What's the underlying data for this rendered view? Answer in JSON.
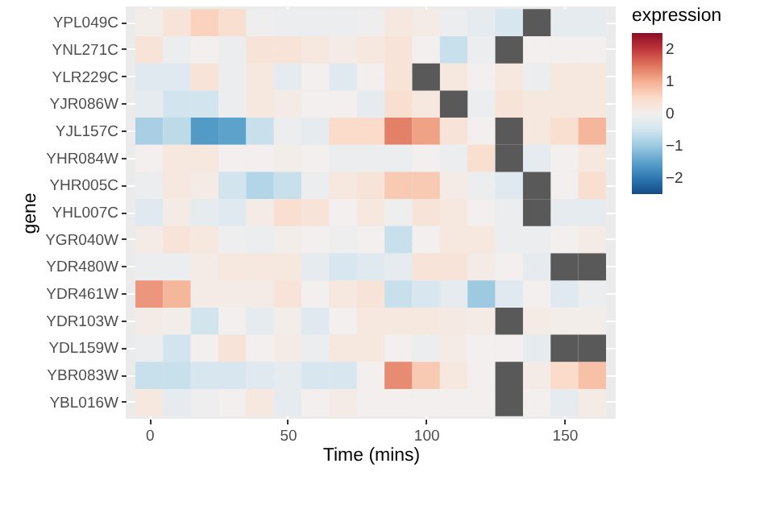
{
  "chart_data": {
    "type": "heatmap",
    "xlabel": "Time (mins)",
    "ylabel": "gene",
    "clabel": "expression",
    "x": [
      0,
      10,
      20,
      30,
      40,
      50,
      60,
      70,
      80,
      90,
      100,
      110,
      120,
      130,
      140,
      150,
      160
    ],
    "xlim": [
      -8.5,
      168.5
    ],
    "xticks": [
      0,
      50,
      100,
      150
    ],
    "y_categories": [
      "YPL049C",
      "YNL271C",
      "YLR229C",
      "YJR086W",
      "YJL157C",
      "YHR084W",
      "YHR005C",
      "YHL007C",
      "YGR040W",
      "YDR480W",
      "YDR461W",
      "YDR103W",
      "YDL159W",
      "YBR083W",
      "YBL016W"
    ],
    "cells": [
      [
        0.05,
        0.3,
        0.6,
        0.4,
        -0.05,
        -0.1,
        -0.1,
        -0.1,
        -0.05,
        0.2,
        0.1,
        -0.1,
        -0.2,
        -0.4,
        null,
        -0.2,
        -0.2
      ],
      [
        0.3,
        -0.1,
        0,
        -0.1,
        0.3,
        0.3,
        0.2,
        0.1,
        0.2,
        0.3,
        0,
        -0.6,
        -0.1,
        null,
        0,
        0,
        0
      ],
      [
        -0.3,
        -0.3,
        0.3,
        -0.1,
        0.2,
        -0.2,
        0,
        -0.3,
        0,
        0.3,
        null,
        0.2,
        0,
        0.2,
        -0.1,
        0.2,
        0.2
      ],
      [
        -0.2,
        -0.5,
        -0.5,
        -0.1,
        0.2,
        0.1,
        0,
        0,
        -0.2,
        0.4,
        0.2,
        null,
        -0.1,
        0.3,
        0.2,
        0.2,
        0.2
      ],
      [
        -0.9,
        -0.7,
        -1.6,
        -1.5,
        -0.6,
        -0.1,
        -0.2,
        0.5,
        0.5,
        1.4,
        1.1,
        0.3,
        0,
        null,
        0.2,
        0.4,
        0.9
      ],
      [
        0,
        0.2,
        0.2,
        0,
        0,
        0.05,
        0,
        -0.1,
        -0.1,
        -0.1,
        0,
        -0.1,
        0.4,
        null,
        -0.2,
        0,
        0.2
      ],
      [
        -0.1,
        0.2,
        0.1,
        -0.5,
        -0.8,
        -0.6,
        -0.1,
        0.2,
        0.3,
        0.7,
        0.7,
        0.1,
        -0.1,
        -0.3,
        null,
        0,
        0.4
      ],
      [
        -0.3,
        0.1,
        -0.2,
        -0.3,
        0.1,
        0.4,
        0.3,
        0,
        0.2,
        -0.05,
        0.3,
        0.2,
        0,
        -0.1,
        null,
        -0.2,
        -0.2
      ],
      [
        0.1,
        0.3,
        0.2,
        -0.05,
        -0.1,
        0.05,
        0,
        -0.05,
        0,
        -0.6,
        0,
        0.2,
        0.2,
        -0.1,
        -0.1,
        0,
        0.1
      ],
      [
        -0.1,
        -0.1,
        0.1,
        0.2,
        0.2,
        0.2,
        -0.2,
        -0.4,
        -0.3,
        -0.2,
        0.3,
        0.3,
        0.1,
        0,
        -0.2,
        null,
        null
      ],
      [
        1.2,
        0.9,
        0.1,
        0.1,
        0.1,
        0.3,
        0,
        0.2,
        0.3,
        -0.6,
        -0.4,
        -0.2,
        -1.0,
        -0.3,
        0,
        -0.3,
        -0.1
      ],
      [
        0.1,
        0.05,
        -0.5,
        0,
        -0.2,
        0.05,
        -0.3,
        0,
        0.2,
        0.2,
        0.2,
        0.15,
        0.1,
        null,
        0.1,
        0.05,
        0.05
      ],
      [
        -0.1,
        -0.5,
        0,
        0.3,
        0,
        0.1,
        -0.1,
        0.2,
        0.2,
        0,
        -0.1,
        0.1,
        0,
        0,
        -0.2,
        null,
        null
      ],
      [
        -0.6,
        -0.6,
        -0.4,
        -0.4,
        -0.3,
        -0.2,
        -0.4,
        -0.4,
        0,
        1.3,
        0.7,
        0.2,
        0,
        null,
        0.1,
        0.5,
        0.8
      ],
      [
        0.2,
        -0.2,
        -0.05,
        0,
        0.2,
        -0.2,
        0,
        0.1,
        0,
        0,
        0,
        0,
        0,
        null,
        0,
        -0.2,
        0.1
      ]
    ],
    "clim": [
      -2.5,
      2.5
    ],
    "cticks": [
      -2,
      -1,
      0,
      1,
      2
    ],
    "grid": true
  }
}
